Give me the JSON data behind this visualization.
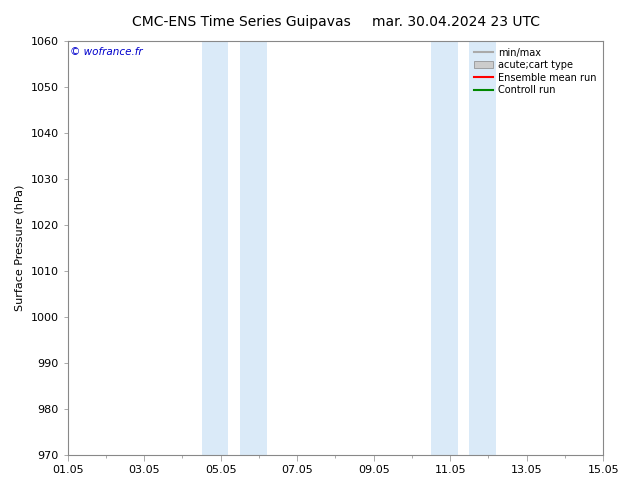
{
  "title_left": "CMC-ENS Time Series Guipavas",
  "title_right": "mar. 30.04.2024 23 UTC",
  "ylabel": "Surface Pressure (hPa)",
  "ylim": [
    970,
    1060
  ],
  "yticks": [
    970,
    980,
    990,
    1000,
    1010,
    1020,
    1030,
    1040,
    1050,
    1060
  ],
  "xlim_start": 0,
  "xlim_end": 14,
  "xtick_positions": [
    0,
    2,
    4,
    6,
    8,
    10,
    12,
    14
  ],
  "xtick_labels": [
    "01.05",
    "03.05",
    "05.05",
    "07.05",
    "09.05",
    "11.05",
    "13.05",
    "15.05"
  ],
  "shaded_bands": [
    {
      "xmin": 3.5,
      "xmax": 4.2
    },
    {
      "xmin": 4.5,
      "xmax": 5.2
    },
    {
      "xmin": 9.5,
      "xmax": 10.2
    },
    {
      "xmin": 10.5,
      "xmax": 11.2
    }
  ],
  "shade_color": "#daeaf8",
  "background_color": "#ffffff",
  "watermark_text": "© wofrance.fr",
  "watermark_color": "#0000cc",
  "legend_entries": [
    {
      "label": "min/max",
      "color": "#aaaaaa",
      "type": "line"
    },
    {
      "label": "acute;cart type",
      "color": "#cccccc",
      "type": "fill"
    },
    {
      "label": "Ensemble mean run",
      "color": "#ff0000",
      "type": "line"
    },
    {
      "label": "Controll run",
      "color": "#008800",
      "type": "line"
    }
  ],
  "spine_color": "#888888",
  "title_fontsize": 10,
  "axis_fontsize": 8,
  "tick_fontsize": 8
}
